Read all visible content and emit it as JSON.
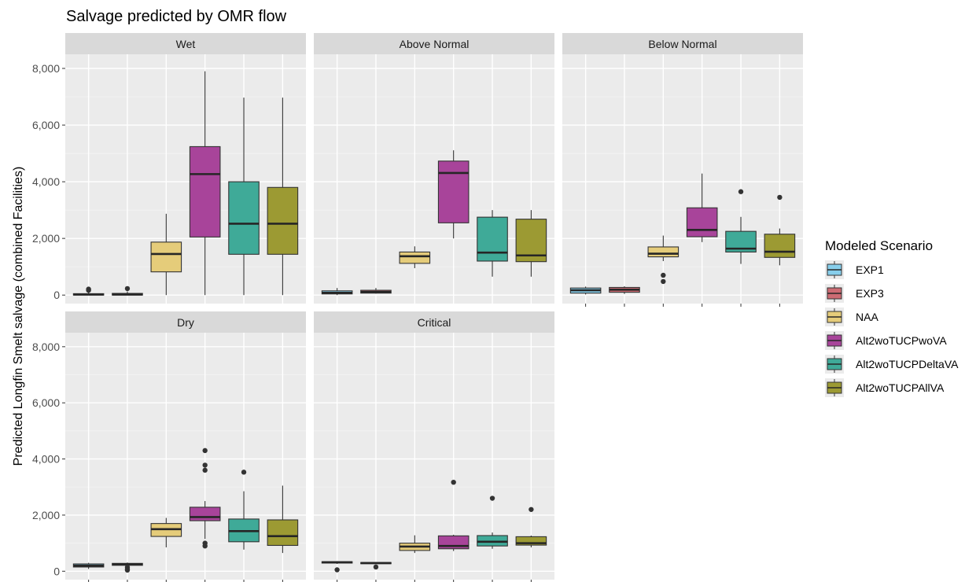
{
  "chart_data": {
    "type": "boxplot",
    "title": "Salvage predicted by OMR flow",
    "ylabel": "Predicted Longfin Smelt salvage (combined Facilities)",
    "xlabel": "",
    "ylim": [
      -300,
      8500
    ],
    "yticks": [
      0,
      2000,
      4000,
      6000,
      8000
    ],
    "ytick_labels": [
      "0",
      "2,000",
      "4,000",
      "6,000",
      "8,000"
    ],
    "grid": true,
    "legend": {
      "title": "Modeled Scenario",
      "position": "right",
      "entries": [
        "EXP1",
        "EXP3",
        "NAA",
        "Alt2woTUCPwoVA",
        "Alt2woTUCPDeltaVA",
        "Alt2woTUCPAllVA"
      ]
    },
    "colors": {
      "EXP1": "#87CEEB",
      "EXP3": "#CD6B73",
      "NAA": "#E5CC7A",
      "Alt2woTUCPwoVA": "#A8449A",
      "Alt2woTUCPDeltaVA": "#3FAA98",
      "Alt2woTUCPAllVA": "#9C9A33"
    },
    "panels": [
      {
        "name": "Wet",
        "boxes": [
          {
            "scenario": "EXP1",
            "lower": 0,
            "q1": 0,
            "median": 20,
            "q3": 50,
            "upper": 110,
            "outliers": [
              170,
              210
            ]
          },
          {
            "scenario": "EXP3",
            "lower": 0,
            "q1": 0,
            "median": 20,
            "q3": 60,
            "upper": 130,
            "outliers": [
              230
            ]
          },
          {
            "scenario": "NAA",
            "lower": 0,
            "q1": 820,
            "median": 1450,
            "q3": 1870,
            "upper": 2870,
            "outliers": []
          },
          {
            "scenario": "Alt2woTUCPwoVA",
            "lower": 0,
            "q1": 2050,
            "median": 4270,
            "q3": 5240,
            "upper": 7900,
            "outliers": []
          },
          {
            "scenario": "Alt2woTUCPDeltaVA",
            "lower": 0,
            "q1": 1440,
            "median": 2520,
            "q3": 4000,
            "upper": 6970,
            "outliers": []
          },
          {
            "scenario": "Alt2woTUCPAllVA",
            "lower": 0,
            "q1": 1440,
            "median": 2520,
            "q3": 3800,
            "upper": 6970,
            "outliers": []
          }
        ]
      },
      {
        "name": "Above Normal",
        "boxes": [
          {
            "scenario": "EXP1",
            "lower": 0,
            "q1": 40,
            "median": 80,
            "q3": 150,
            "upper": 250,
            "outliers": []
          },
          {
            "scenario": "EXP3",
            "lower": 50,
            "q1": 70,
            "median": 110,
            "q3": 170,
            "upper": 250,
            "outliers": []
          },
          {
            "scenario": "NAA",
            "lower": 950,
            "q1": 1120,
            "median": 1370,
            "q3": 1520,
            "upper": 1720,
            "outliers": []
          },
          {
            "scenario": "Alt2woTUCPwoVA",
            "lower": 2000,
            "q1": 2550,
            "median": 4310,
            "q3": 4730,
            "upper": 5110,
            "outliers": []
          },
          {
            "scenario": "Alt2woTUCPDeltaVA",
            "lower": 650,
            "q1": 1200,
            "median": 1500,
            "q3": 2750,
            "upper": 3000,
            "outliers": []
          },
          {
            "scenario": "Alt2woTUCPAllVA",
            "lower": 650,
            "q1": 1180,
            "median": 1400,
            "q3": 2680,
            "upper": 3000,
            "outliers": []
          }
        ]
      },
      {
        "name": "Below Normal",
        "boxes": [
          {
            "scenario": "EXP1",
            "lower": 20,
            "q1": 70,
            "median": 170,
            "q3": 250,
            "upper": 300,
            "outliers": []
          },
          {
            "scenario": "EXP3",
            "lower": 40,
            "q1": 100,
            "median": 190,
            "q3": 270,
            "upper": 310,
            "outliers": []
          },
          {
            "scenario": "NAA",
            "lower": 1200,
            "q1": 1350,
            "median": 1460,
            "q3": 1700,
            "upper": 2100,
            "outliers": [
              700,
              480
            ]
          },
          {
            "scenario": "Alt2woTUCPwoVA",
            "lower": 1870,
            "q1": 2060,
            "median": 2300,
            "q3": 3080,
            "upper": 4290,
            "outliers": []
          },
          {
            "scenario": "Alt2woTUCPDeltaVA",
            "lower": 1100,
            "q1": 1520,
            "median": 1640,
            "q3": 2250,
            "upper": 2760,
            "outliers": [
              3650
            ]
          },
          {
            "scenario": "Alt2woTUCPAllVA",
            "lower": 1050,
            "q1": 1330,
            "median": 1530,
            "q3": 2150,
            "upper": 2350,
            "outliers": [
              3450
            ]
          }
        ]
      },
      {
        "name": "Dry",
        "boxes": [
          {
            "scenario": "EXP1",
            "lower": 80,
            "q1": 150,
            "median": 200,
            "q3": 260,
            "upper": 300,
            "outliers": []
          },
          {
            "scenario": "EXP3",
            "lower": 160,
            "q1": 210,
            "median": 250,
            "q3": 280,
            "upper": 310,
            "outliers": [
              140,
              70,
              40
            ]
          },
          {
            "scenario": "NAA",
            "lower": 850,
            "q1": 1240,
            "median": 1500,
            "q3": 1700,
            "upper": 1900,
            "outliers": []
          },
          {
            "scenario": "Alt2woTUCPwoVA",
            "lower": 1150,
            "q1": 1800,
            "median": 1930,
            "q3": 2280,
            "upper": 2500,
            "outliers": [
              4300,
              3780,
              3600,
              1000,
              900
            ]
          },
          {
            "scenario": "Alt2woTUCPDeltaVA",
            "lower": 770,
            "q1": 1050,
            "median": 1430,
            "q3": 1860,
            "upper": 2850,
            "outliers": [
              3530
            ]
          },
          {
            "scenario": "Alt2woTUCPAllVA",
            "lower": 650,
            "q1": 920,
            "median": 1250,
            "q3": 1830,
            "upper": 3050,
            "outliers": []
          }
        ]
      },
      {
        "name": "Critical",
        "boxes": [
          {
            "scenario": "EXP1",
            "lower": 260,
            "q1": 290,
            "median": 320,
            "q3": 340,
            "upper": 360,
            "outliers": [
              50
            ]
          },
          {
            "scenario": "EXP3",
            "lower": 250,
            "q1": 270,
            "median": 290,
            "q3": 310,
            "upper": 330,
            "outliers": [
              150
            ]
          },
          {
            "scenario": "NAA",
            "lower": 650,
            "q1": 740,
            "median": 880,
            "q3": 1000,
            "upper": 1280,
            "outliers": []
          },
          {
            "scenario": "Alt2woTUCPwoVA",
            "lower": 720,
            "q1": 800,
            "median": 900,
            "q3": 1260,
            "upper": 1300,
            "outliers": [
              3170
            ]
          },
          {
            "scenario": "Alt2woTUCPDeltaVA",
            "lower": 800,
            "q1": 900,
            "median": 1050,
            "q3": 1270,
            "upper": 1380,
            "outliers": [
              2600
            ]
          },
          {
            "scenario": "Alt2woTUCPAllVA",
            "lower": 850,
            "q1": 930,
            "median": 1000,
            "q3": 1230,
            "upper": 1270,
            "outliers": [
              2200
            ]
          }
        ]
      }
    ]
  }
}
